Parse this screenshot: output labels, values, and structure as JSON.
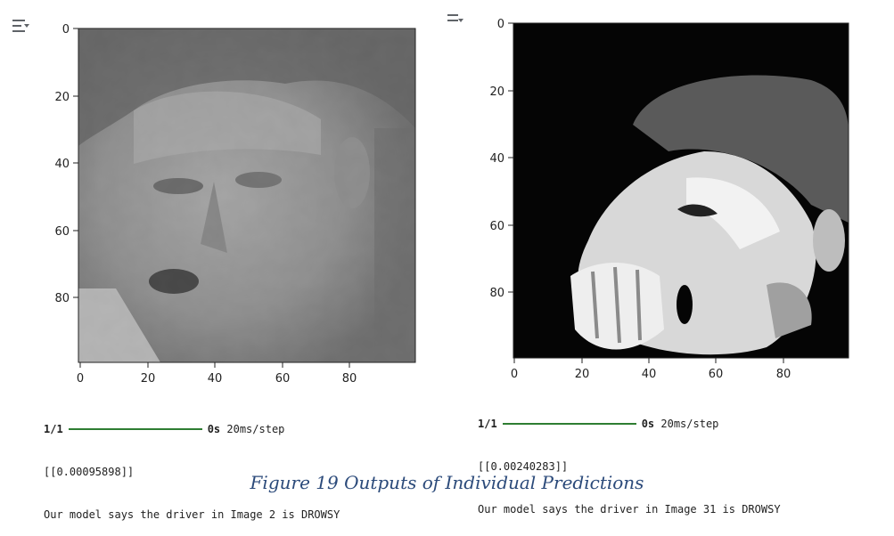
{
  "colors": {
    "accent_bar": "#2e7d32",
    "caption": "#2b4a7a"
  },
  "icons": {
    "left_toggle": "output-collapse-icon",
    "right_toggle": "output-collapse-icon"
  },
  "panels": [
    {
      "x_ticks": [
        "0",
        "20",
        "40",
        "60",
        "80"
      ],
      "y_ticks": [
        "0",
        "20",
        "40",
        "60",
        "80"
      ],
      "progress_label": "1/1",
      "progress_fraction": 1.0,
      "timing_strong": "0s",
      "timing_rest": "20ms/step",
      "prediction": "[[0.00095898]]",
      "message": "Our model says the driver in Image 2 is DROWSY"
    },
    {
      "x_ticks": [
        "0",
        "20",
        "40",
        "60",
        "80"
      ],
      "y_ticks": [
        "0",
        "20",
        "40",
        "60",
        "80"
      ],
      "progress_label": "1/1",
      "progress_fraction": 1.0,
      "timing_strong": "0s",
      "timing_rest": "20ms/step",
      "prediction": "[[0.00240283]]",
      "message": "Our model says the driver in Image 31 is DROWSY"
    }
  ],
  "caption": "Figure 19 Outputs of Individual Predictions"
}
